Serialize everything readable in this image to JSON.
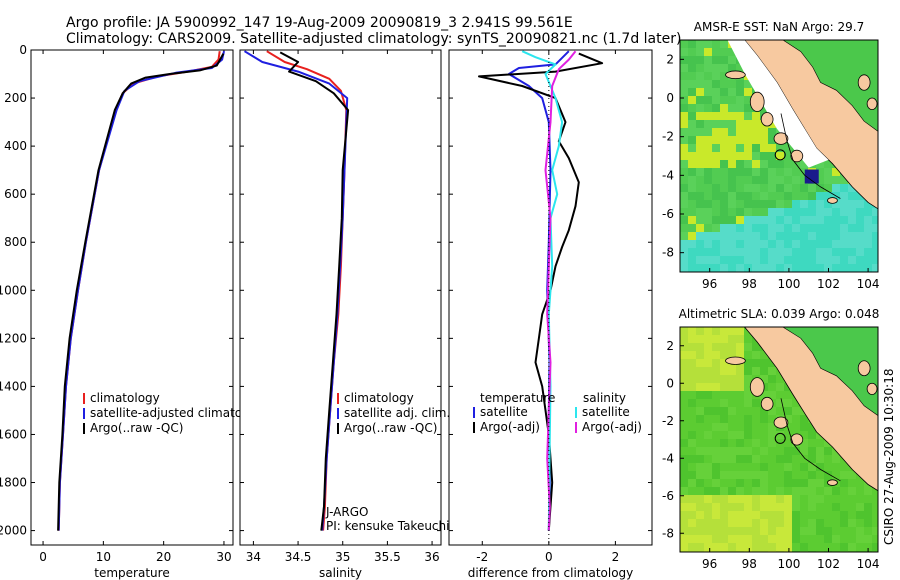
{
  "title": {
    "line1": "Argo profile: JA 5900992_147 19-Aug-2009 20090819_3 2.941S 99.561E",
    "line2": "Climatology: CARS2009. Satellite-adjusted climatology: synTS_20090821.nc (1.7d later)"
  },
  "side_label": "CSIRO 27-Aug-2009 10:30:18",
  "colors": {
    "climatology": "#e8201e",
    "satellite": "#1f1fe0",
    "argo": "#000000",
    "sat_salinity": "#2ce6ee",
    "argo_salinity": "#e020e0",
    "land": "#f7c9a0"
  },
  "chart_data": [
    {
      "id": "temperature",
      "type": "line",
      "xlabel": "temperature",
      "xlim": [
        -2,
        31.5
      ],
      "ylim": [
        2060,
        0
      ],
      "xticks": [
        0,
        10,
        20,
        30
      ],
      "yticks": [
        0,
        200,
        400,
        600,
        800,
        1000,
        1200,
        1400,
        1600,
        1800,
        2000
      ],
      "legend": [
        "climatology",
        "satellite-adjusted climatology",
        "Argo(..raw -QC)"
      ],
      "series": [
        {
          "name": "climatology",
          "color": "#e8201e",
          "x": [
            29.3,
            29.1,
            28,
            24,
            19,
            15,
            13.2,
            12,
            9.3,
            7.1,
            5.8,
            4.6,
            3.8,
            3.3,
            2.8,
            2.6
          ],
          "y": [
            5,
            40,
            70,
            90,
            110,
            140,
            180,
            250,
            500,
            800,
            1000,
            1200,
            1400,
            1600,
            1800,
            2000
          ]
        },
        {
          "name": "satellite-adjusted climatology",
          "color": "#1f1fe0",
          "x": [
            30,
            29.7,
            28,
            22,
            16,
            13.5,
            12.2,
            9.3,
            7.1,
            5.8,
            4.6,
            3.8,
            3.3,
            2.8,
            2.6
          ],
          "y": [
            5,
            40,
            75,
            95,
            130,
            170,
            250,
            500,
            800,
            1000,
            1200,
            1400,
            1600,
            1800,
            2000
          ]
        },
        {
          "name": "Argo(..raw -QC)",
          "color": "#000000",
          "x": [
            29.9,
            28.8,
            26,
            21,
            17,
            14.6,
            13.2,
            11.9,
            9.2,
            7,
            5.6,
            4.4,
            3.6,
            3.2,
            2.7,
            2.5
          ],
          "y": [
            15,
            65,
            85,
            100,
            115,
            140,
            180,
            250,
            500,
            800,
            1000,
            1200,
            1400,
            1600,
            1800,
            2000
          ]
        }
      ]
    },
    {
      "id": "salinity",
      "type": "line",
      "xlabel": "salinity",
      "xlim": [
        33.85,
        36.1
      ],
      "ylim": [
        2060,
        0
      ],
      "xticks": [
        34,
        34.5,
        35,
        35.5,
        36
      ],
      "legend": [
        "climatology",
        "satellite adj. clim.",
        "Argo(..raw -QC)"
      ],
      "annotation": [
        "J-ARGO",
        "PI: kensuke Takeuchi"
      ],
      "series": [
        {
          "name": "climatology",
          "color": "#e8201e",
          "x": [
            34.15,
            34.35,
            34.6,
            34.85,
            34.98,
            35.04,
            35.02,
            35,
            34.98,
            34.95,
            34.9,
            34.86,
            34.82,
            34.8,
            34.78
          ],
          "y": [
            5,
            50,
            80,
            120,
            170,
            250,
            500,
            700,
            900,
            1100,
            1300,
            1500,
            1700,
            1900,
            2000
          ]
        },
        {
          "name": "satellite adj. clim.",
          "color": "#1f1fe0",
          "x": [
            33.9,
            34.1,
            34.5,
            34.85,
            35.05,
            35.02,
            35,
            34.97,
            34.94,
            34.9,
            34.86,
            34.82,
            34.79,
            34.77
          ],
          "y": [
            5,
            50,
            90,
            140,
            200,
            500,
            700,
            900,
            1100,
            1300,
            1500,
            1700,
            1900,
            2000
          ]
        },
        {
          "name": "Argo(..raw -QC)",
          "color": "#000000",
          "x": [
            34.3,
            34.5,
            34.4,
            34.7,
            34.9,
            35.06,
            35,
            34.99,
            34.96,
            34.93,
            34.89,
            34.85,
            34.81,
            34.79,
            34.76
          ],
          "y": [
            10,
            50,
            90,
            130,
            180,
            250,
            500,
            700,
            900,
            1100,
            1300,
            1500,
            1700,
            1900,
            2000
          ]
        }
      ]
    },
    {
      "id": "difference",
      "type": "line",
      "xlabel": "difference from climatology",
      "xlim": [
        -3,
        3.1
      ],
      "ylim": [
        2060,
        0
      ],
      "xticks": [
        -2,
        0,
        2
      ],
      "legend_left": {
        "heading": "temperature",
        "items": [
          "satellite",
          "Argo(-adj)"
        ]
      },
      "legend_right": {
        "heading": "salinity",
        "items": [
          "satellite",
          "Argo(-adj)"
        ]
      },
      "series": [
        {
          "name": "temperature satellite",
          "color": "#1f1fe0",
          "x": [
            0.6,
            0.2,
            -0.9,
            -1.2,
            -0.6,
            -0.2,
            0,
            0.05,
            0,
            -0.05,
            0.02,
            0,
            0.03,
            0
          ],
          "y": [
            5,
            60,
            75,
            100,
            150,
            200,
            300,
            500,
            800,
            1000,
            1300,
            1500,
            1800,
            2000
          ]
        },
        {
          "name": "temperature Argo(-adj)",
          "color": "#000000",
          "x": [
            0.9,
            1.6,
            0.2,
            -2.1,
            -0.8,
            0.2,
            0.5,
            0.3,
            0.6,
            0.9,
            0.8,
            0.6,
            0.4,
            0.2,
            0.05,
            -0.2,
            -0.3,
            -0.4,
            -0.2,
            -0.1,
            0,
            0.1,
            0
          ],
          "y": [
            15,
            55,
            90,
            110,
            150,
            200,
            300,
            380,
            450,
            550,
            650,
            750,
            820,
            900,
            1000,
            1100,
            1200,
            1300,
            1400,
            1500,
            1600,
            1800,
            2000
          ]
        },
        {
          "name": "salinity satellite",
          "color": "#2ce6ee",
          "x": [
            -0.8,
            -0.4,
            0.2,
            -0.1,
            0.2,
            0.4,
            0.3,
            0.1,
            0.25,
            0.05,
            0.1,
            0,
            0.05,
            0.02,
            0
          ],
          "y": [
            5,
            30,
            60,
            100,
            200,
            300,
            400,
            500,
            600,
            700,
            900,
            1100,
            1400,
            1700,
            2000
          ]
        },
        {
          "name": "salinity Argo(-adj)",
          "color": "#e020e0",
          "x": [
            0.8,
            0.6,
            0.3,
            0.1,
            0.05,
            -0.1,
            0.05,
            0,
            -0.05,
            0.05,
            0,
            -0.05,
            0.03,
            0
          ],
          "y": [
            5,
            40,
            80,
            150,
            300,
            500,
            700,
            900,
            1100,
            1300,
            1500,
            1700,
            1900,
            2000
          ]
        }
      ]
    },
    {
      "id": "sst_map",
      "type": "heatmap",
      "title": "AMSR-E SST: NaN Argo: 29.7",
      "xlim": [
        94.5,
        104.5
      ],
      "ylim": [
        -9,
        3
      ],
      "xticks": [
        96,
        98,
        100,
        102,
        104
      ],
      "yticks": [
        -8,
        -6,
        -4,
        -2,
        0,
        2
      ],
      "float_position": {
        "lon": 99.561,
        "lat": -2.941
      }
    },
    {
      "id": "sla_map",
      "type": "heatmap",
      "title": "Altimetric SLA: 0.039 Argo: 0.048",
      "xlim": [
        94.5,
        104.5
      ],
      "ylim": [
        -9,
        3
      ],
      "xticks": [
        96,
        98,
        100,
        102,
        104
      ],
      "yticks": [
        -8,
        -6,
        -4,
        -2,
        0,
        2
      ],
      "float_position": {
        "lon": 99.561,
        "lat": -2.941
      }
    }
  ]
}
